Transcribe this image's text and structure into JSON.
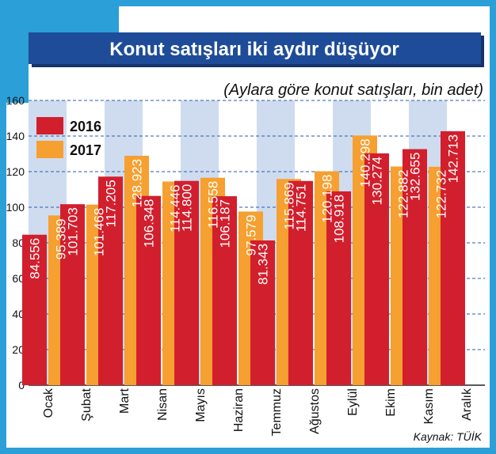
{
  "chart_data": {
    "type": "bar",
    "title": "Konut satışları iki aydır düşüyor",
    "subtitle": "(Aylara göre konut satışları, bin adet)",
    "source": "Kaynak: TÜİK",
    "categories": [
      "Ocak",
      "Şubat",
      "Mart",
      "Nisan",
      "Mayıs",
      "Haziran",
      "Temmuz",
      "Ağustos",
      "Eylül",
      "Ekim",
      "Kasım",
      "Aralık"
    ],
    "series": [
      {
        "name": "2016",
        "color": "#d21f2d",
        "values": [
          84.556,
          101.703,
          117.205,
          106.348,
          114.8,
          106.187,
          81.343,
          114.751,
          108.918,
          130.274,
          132.655,
          142.713
        ],
        "labels": [
          "84.556",
          "101.703",
          "117.205",
          "106.348",
          "114.800",
          "106.187",
          "81.343",
          "114.751",
          "108.918",
          "130.274",
          "132.655",
          "142.713"
        ]
      },
      {
        "name": "2017",
        "color": "#f5a031",
        "values": [
          95.389,
          101.468,
          128.923,
          114.446,
          116.558,
          97.579,
          115.869,
          120.198,
          140.298,
          122.882,
          122.732,
          null
        ],
        "labels": [
          "95.389",
          "101.468",
          "128.923",
          "114.446",
          "116.558",
          "97.579",
          "115.869",
          "120.198",
          "140.298",
          "122.882",
          "122.732",
          ""
        ]
      }
    ],
    "yticks": [
      "0",
      "20",
      "40",
      "60",
      "80",
      "100",
      "120",
      "140",
      "160"
    ],
    "ylim": [
      0,
      160
    ],
    "grid": true,
    "legend": "top-left",
    "colors": {
      "frame": "#2a9fd8",
      "title_bg": "#1e4c99",
      "title_text": "#ffffff",
      "stripe": "#cfdcef",
      "grid": "#2d5aa6",
      "bar_label": "#ffffff",
      "text": "#111111"
    }
  }
}
